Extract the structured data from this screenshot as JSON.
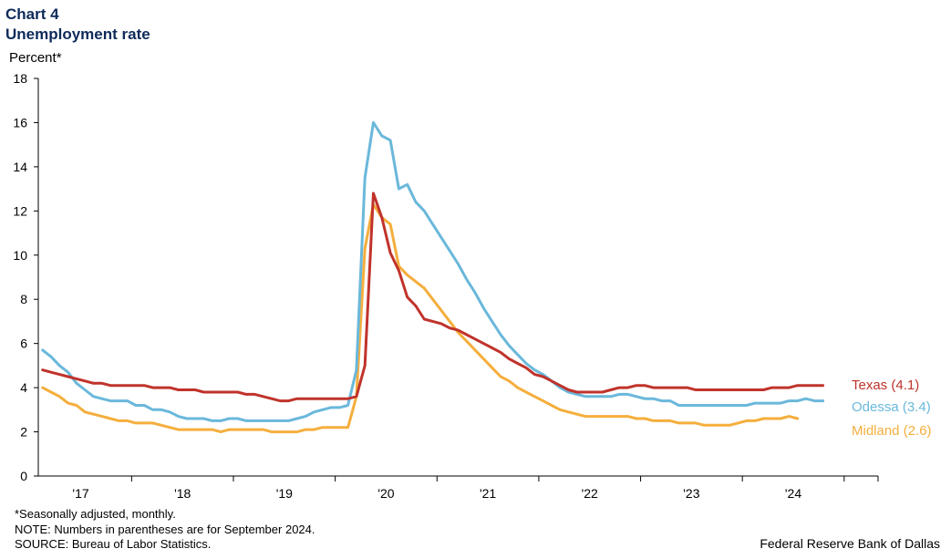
{
  "header": {
    "chart_number": "Chart 4",
    "title": "Unemployment rate"
  },
  "chart_data": {
    "type": "line",
    "title": "Unemployment rate",
    "ylabel": "Percent*",
    "xlabel": "",
    "ylim": [
      0,
      18
    ],
    "y_ticks": [
      0,
      2,
      4,
      6,
      8,
      10,
      12,
      14,
      16,
      18
    ],
    "x_range": [
      2016.583,
      2024.833
    ],
    "x_ticks": [
      {
        "value": 2017.0,
        "label": "'17"
      },
      {
        "value": 2018.0,
        "label": "'18"
      },
      {
        "value": 2019.0,
        "label": "'19"
      },
      {
        "value": 2020.0,
        "label": "'20"
      },
      {
        "value": 2021.0,
        "label": "'21"
      },
      {
        "value": 2022.0,
        "label": "'22"
      },
      {
        "value": 2023.0,
        "label": "'23"
      },
      {
        "value": 2024.0,
        "label": "'24"
      }
    ],
    "x_start": 2016.625,
    "x_step": 0.0833333,
    "series": [
      {
        "name": "Texas",
        "label": "Texas (4.1)",
        "color": "#c0332b",
        "values": [
          4.8,
          4.7,
          4.6,
          4.5,
          4.4,
          4.3,
          4.2,
          4.2,
          4.1,
          4.1,
          4.1,
          4.1,
          4.1,
          4.0,
          4.0,
          4.0,
          3.9,
          3.9,
          3.9,
          3.8,
          3.8,
          3.8,
          3.8,
          3.8,
          3.7,
          3.7,
          3.6,
          3.5,
          3.4,
          3.4,
          3.5,
          3.5,
          3.5,
          3.5,
          3.5,
          3.5,
          3.5,
          3.6,
          5.0,
          12.8,
          11.7,
          10.1,
          9.3,
          8.1,
          7.7,
          7.1,
          7.0,
          6.9,
          6.7,
          6.6,
          6.4,
          6.2,
          6.0,
          5.8,
          5.6,
          5.3,
          5.1,
          4.9,
          4.6,
          4.5,
          4.3,
          4.1,
          3.9,
          3.8,
          3.8,
          3.8,
          3.8,
          3.9,
          4.0,
          4.0,
          4.1,
          4.1,
          4.0,
          4.0,
          4.0,
          4.0,
          4.0,
          3.9,
          3.9,
          3.9,
          3.9,
          3.9,
          3.9,
          3.9,
          3.9,
          3.9,
          4.0,
          4.0,
          4.0,
          4.1,
          4.1,
          4.1,
          4.1
        ]
      },
      {
        "name": "Odessa",
        "label": "Odessa (3.4)",
        "color": "#6ab8db",
        "values": [
          5.7,
          5.4,
          5.0,
          4.7,
          4.2,
          3.9,
          3.6,
          3.5,
          3.4,
          3.4,
          3.4,
          3.2,
          3.2,
          3.0,
          3.0,
          2.9,
          2.7,
          2.6,
          2.6,
          2.6,
          2.5,
          2.5,
          2.6,
          2.6,
          2.5,
          2.5,
          2.5,
          2.5,
          2.5,
          2.5,
          2.6,
          2.7,
          2.9,
          3.0,
          3.1,
          3.1,
          3.2,
          4.8,
          13.5,
          16.0,
          15.4,
          15.2,
          13.0,
          13.2,
          12.4,
          12.0,
          11.4,
          10.8,
          10.2,
          9.6,
          8.9,
          8.3,
          7.6,
          7.0,
          6.4,
          5.9,
          5.5,
          5.1,
          4.8,
          4.6,
          4.3,
          4.0,
          3.8,
          3.7,
          3.6,
          3.6,
          3.6,
          3.6,
          3.7,
          3.7,
          3.6,
          3.5,
          3.5,
          3.4,
          3.4,
          3.2,
          3.2,
          3.2,
          3.2,
          3.2,
          3.2,
          3.2,
          3.2,
          3.2,
          3.3,
          3.3,
          3.3,
          3.3,
          3.4,
          3.4,
          3.5,
          3.4,
          3.4
        ]
      },
      {
        "name": "Midland",
        "label": "Midland (2.6)",
        "color": "#f5ae3d",
        "values": [
          4.0,
          3.8,
          3.6,
          3.3,
          3.2,
          2.9,
          2.8,
          2.7,
          2.6,
          2.5,
          2.5,
          2.4,
          2.4,
          2.4,
          2.3,
          2.2,
          2.1,
          2.1,
          2.1,
          2.1,
          2.1,
          2.0,
          2.1,
          2.1,
          2.1,
          2.1,
          2.1,
          2.0,
          2.0,
          2.0,
          2.0,
          2.1,
          2.1,
          2.2,
          2.2,
          2.2,
          2.2,
          3.6,
          10.3,
          12.3,
          11.7,
          11.4,
          9.5,
          9.1,
          8.8,
          8.5,
          8.0,
          7.5,
          7.0,
          6.5,
          6.1,
          5.7,
          5.3,
          4.9,
          4.5,
          4.3,
          4.0,
          3.8,
          3.6,
          3.4,
          3.2,
          3.0,
          2.9,
          2.8,
          2.7,
          2.7,
          2.7,
          2.7,
          2.7,
          2.7,
          2.6,
          2.6,
          2.5,
          2.5,
          2.5,
          2.4,
          2.4,
          2.4,
          2.3,
          2.3,
          2.3,
          2.3,
          2.4,
          2.5,
          2.5,
          2.6,
          2.6,
          2.6,
          2.7,
          2.6
        ]
      }
    ]
  },
  "footnotes": [
    "*Seasonally adjusted, monthly.",
    "NOTE: Numbers in parentheses are for September 2024.",
    "SOURCE: Bureau of Labor Statistics."
  ],
  "credit": "Federal Reserve Bank of Dallas"
}
